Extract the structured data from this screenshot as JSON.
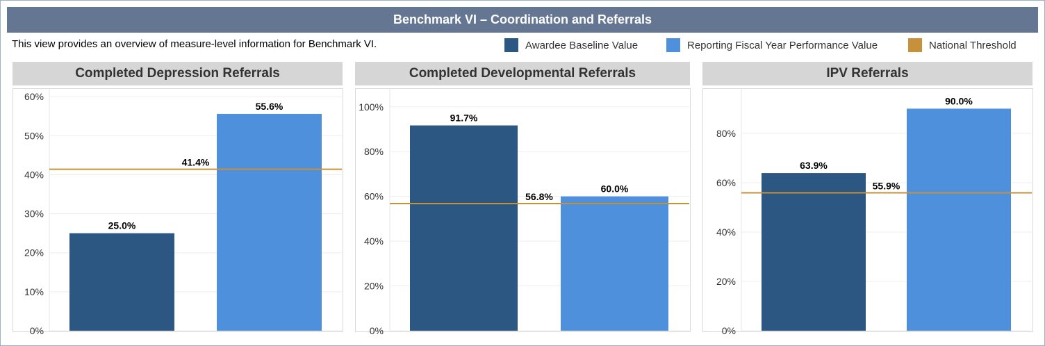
{
  "header": {
    "title": "Benchmark VI – Coordination and Referrals",
    "description": "This view provides an overview of measure-level information for Benchmark VI."
  },
  "legend": [
    {
      "label": "Awardee Baseline Value",
      "color": "#2c5783"
    },
    {
      "label": "Reporting Fiscal Year Performance Value",
      "color": "#4f90dd"
    },
    {
      "label": "National Threshold",
      "color": "#c7913b"
    }
  ],
  "chart_data": [
    {
      "type": "bar",
      "title": "Completed Depression Referrals",
      "categories": [
        "",
        ""
      ],
      "values": [
        25.0,
        55.6
      ],
      "value_labels": [
        "25.0%",
        "55.6%"
      ],
      "colors": [
        "#2c5783",
        "#4f90dd"
      ],
      "threshold": 41.4,
      "threshold_label": "41.4%",
      "ylim": [
        0,
        62
      ],
      "yticks": [
        0,
        10,
        20,
        30,
        40,
        50,
        60
      ],
      "ytick_labels": [
        "0%",
        "10%",
        "20%",
        "30%",
        "40%",
        "50%",
        "60%"
      ],
      "grid": true
    },
    {
      "type": "bar",
      "title": "Completed Developmental Referrals",
      "categories": [
        "",
        ""
      ],
      "values": [
        91.7,
        60.0
      ],
      "value_labels": [
        "91.7%",
        "60.0%"
      ],
      "colors": [
        "#2c5783",
        "#4f90dd"
      ],
      "threshold": 56.8,
      "threshold_label": "56.8%",
      "ylim": [
        0,
        108
      ],
      "yticks": [
        0,
        20,
        40,
        60,
        80,
        100
      ],
      "ytick_labels": [
        "0%",
        "20%",
        "40%",
        "60%",
        "80%",
        "100%"
      ],
      "grid": true
    },
    {
      "type": "bar",
      "title": "IPV Referrals",
      "categories": [
        "",
        ""
      ],
      "values": [
        63.9,
        90.0
      ],
      "value_labels": [
        "63.9%",
        "90.0%"
      ],
      "colors": [
        "#2c5783",
        "#4f90dd"
      ],
      "threshold": 55.9,
      "threshold_label": "55.9%",
      "ylim": [
        0,
        98
      ],
      "yticks": [
        0,
        20,
        40,
        60,
        80
      ],
      "ytick_labels": [
        "0%",
        "20%",
        "40%",
        "60%",
        "80%"
      ],
      "grid": true
    }
  ]
}
